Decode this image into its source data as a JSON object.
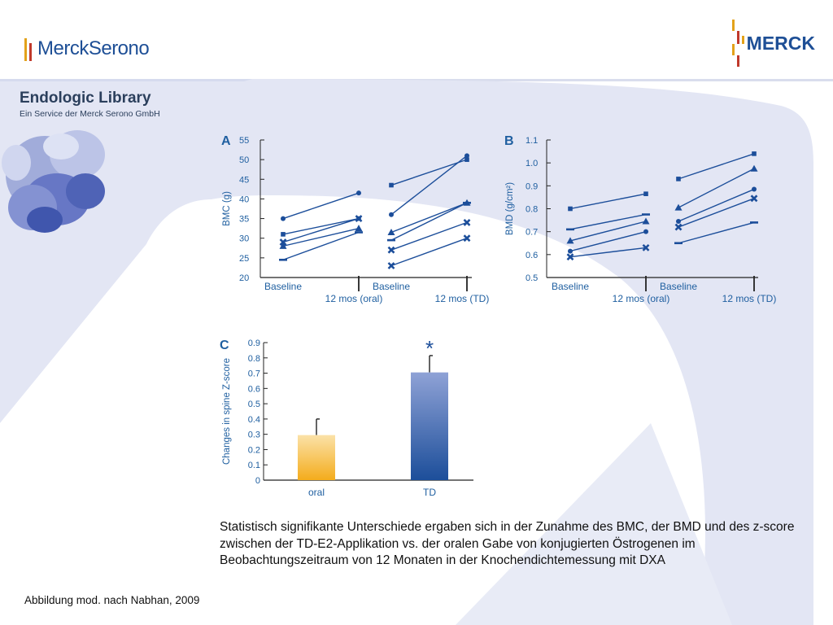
{
  "header": {
    "left_logo": "MerckSerono",
    "right_logo": "MERCK",
    "library_title": "Endologic Library",
    "library_subtitle": "Ein Service der Merck Serono GmbH"
  },
  "colors": {
    "axis_blue": "#1f5fa0",
    "bar_oral_top": "#fbe2a8",
    "bar_oral_bottom": "#f4ac1c",
    "bar_td_top": "#8fa2d6",
    "bar_td_bottom": "#1c4e9a",
    "background_shape": "#dfe3f2"
  },
  "chart_data": [
    {
      "panel": "A",
      "type": "line",
      "ylabel": "BMC (g)",
      "ylim": [
        20,
        55
      ],
      "yticks": [
        "55",
        "50",
        "45",
        "40",
        "35",
        "30",
        "25",
        "20"
      ],
      "x_labels_top": [
        "Baseline",
        "Baseline"
      ],
      "x_labels_bottom": [
        "12 mos (oral)",
        "12 mos (TD)"
      ],
      "groups": [
        {
          "name": "oral",
          "series": [
            {
              "marker": "circle",
              "values": [
                35,
                41.5
              ]
            },
            {
              "marker": "square",
              "values": [
                31,
                35
              ]
            },
            {
              "marker": "x",
              "values": [
                29,
                35
              ]
            },
            {
              "marker": "triangle",
              "values": [
                28,
                32.5
              ]
            },
            {
              "marker": "dash",
              "values": [
                24.5,
                31.5
              ]
            }
          ]
        },
        {
          "name": "TD",
          "series": [
            {
              "marker": "circle",
              "values": [
                36,
                51
              ]
            },
            {
              "marker": "square",
              "values": [
                43.5,
                50
              ]
            },
            {
              "marker": "triangle",
              "values": [
                31.5,
                39
              ]
            },
            {
              "marker": "dash",
              "values": [
                29.5,
                39
              ]
            },
            {
              "marker": "x",
              "values": [
                27,
                34
              ]
            },
            {
              "marker": "x",
              "values": [
                23,
                30
              ]
            }
          ]
        }
      ]
    },
    {
      "panel": "B",
      "type": "line",
      "ylabel": "BMD (g/cm²)",
      "ylim": [
        0.5,
        1.1
      ],
      "yticks": [
        "1.1",
        "1.0",
        "0.9",
        "0.8",
        "0.7",
        "0.6",
        "0.5"
      ],
      "x_labels_top": [
        "Baseline",
        "Baseline"
      ],
      "x_labels_bottom": [
        "12 mos (oral)",
        "12 mos (TD)"
      ],
      "groups": [
        {
          "name": "oral",
          "series": [
            {
              "marker": "square",
              "values": [
                0.8,
                0.865
              ]
            },
            {
              "marker": "dash",
              "values": [
                0.71,
                0.775
              ]
            },
            {
              "marker": "triangle",
              "values": [
                0.66,
                0.745
              ]
            },
            {
              "marker": "circle",
              "values": [
                0.615,
                0.7
              ]
            },
            {
              "marker": "x",
              "values": [
                0.59,
                0.63
              ]
            }
          ]
        },
        {
          "name": "TD",
          "series": [
            {
              "marker": "square",
              "values": [
                0.93,
                1.04
              ]
            },
            {
              "marker": "triangle",
              "values": [
                0.805,
                0.975
              ]
            },
            {
              "marker": "circle",
              "values": [
                0.745,
                0.885
              ]
            },
            {
              "marker": "x",
              "values": [
                0.72,
                0.845
              ]
            },
            {
              "marker": "dash",
              "values": [
                0.65,
                0.74
              ]
            }
          ]
        }
      ]
    },
    {
      "panel": "C",
      "type": "bar",
      "ylabel": "Changes in spine Z-score",
      "ylim": [
        0,
        0.9
      ],
      "yticks": [
        "0.9",
        "0.8",
        "0.7",
        "0.6",
        "0.5",
        "0.4",
        "0.3",
        "0.2",
        "0.1",
        "0"
      ],
      "categories": [
        "oral",
        "TD"
      ],
      "values": [
        0.295,
        0.705
      ],
      "error_upper": [
        0.4,
        0.815
      ],
      "annotation": "*"
    }
  ],
  "caption": "Statistisch signifikante Unterschiede ergaben sich in der Zunahme des BMC, der BMD und des z-score zwischen der TD-E2-Applikation vs. der oralen Gabe von konjugierten Östrogenen im Beobachtungszeitraum von 12 Monaten in der Knochendichtemessung mit DXA",
  "source": "Abbildung mod. nach Nabhan, 2009"
}
